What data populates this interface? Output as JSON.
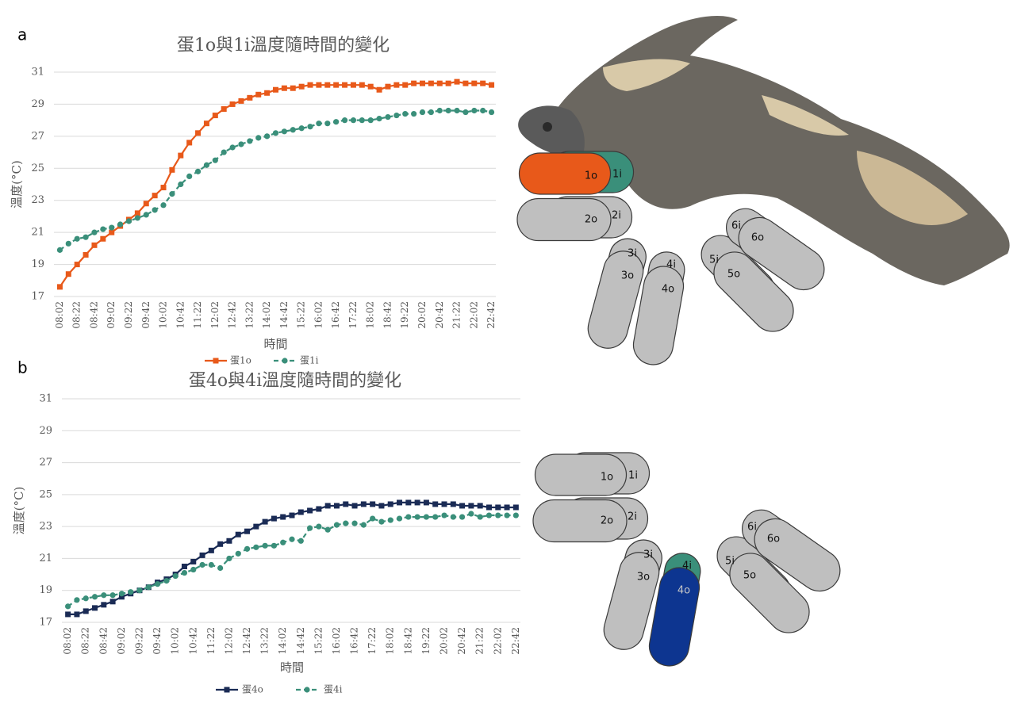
{
  "chart_data": [
    {
      "type": "line",
      "title": "蛋1o與1i溫度隨時間的變化",
      "y_label": "溫度(°C)",
      "x_label": "時間",
      "categories": [
        "08:02",
        null,
        "08:22",
        null,
        "08:42",
        null,
        "09:02",
        null,
        "09:22",
        null,
        "09:42",
        null,
        "10:02",
        null,
        "10:42",
        null,
        "11:22",
        null,
        "12:02",
        null,
        "12:42",
        null,
        "13:22",
        null,
        "14:02",
        null,
        "14:42",
        null,
        "15:22",
        null,
        "16:02",
        null,
        "16:42",
        null,
        "17:22",
        null,
        "18:02",
        null,
        "18:42",
        null,
        "19:22",
        null,
        "20:02",
        null,
        "20:42",
        null,
        "21:22",
        null,
        "22:02",
        null,
        "22:42"
      ],
      "ylim": [
        17,
        31
      ],
      "yticks": [
        17,
        19,
        21,
        23,
        25,
        27,
        29,
        31
      ],
      "grid": true,
      "series": [
        {
          "name": "蛋1o",
          "color": "#e8591a",
          "marker": "square",
          "dashed": false,
          "values": [
            17.6,
            18.4,
            19.0,
            19.6,
            20.2,
            20.6,
            21.0,
            21.4,
            21.8,
            22.2,
            22.8,
            23.3,
            23.8,
            24.9,
            25.8,
            26.6,
            27.2,
            27.8,
            28.3,
            28.7,
            29.0,
            29.2,
            29.4,
            29.6,
            29.7,
            29.9,
            30.0,
            30.0,
            30.1,
            30.2,
            30.2,
            30.2,
            30.2,
            30.2,
            30.2,
            30.2,
            30.1,
            29.9,
            30.1,
            30.2,
            30.2,
            30.3,
            30.3,
            30.3,
            30.3,
            30.3,
            30.4,
            30.3,
            30.3,
            30.3,
            30.2
          ]
        },
        {
          "name": "蛋1i",
          "color": "#3a8f7a",
          "marker": "circle",
          "dashed": true,
          "values": [
            19.9,
            20.3,
            20.6,
            20.7,
            21.0,
            21.2,
            21.3,
            21.5,
            21.7,
            21.9,
            22.1,
            22.4,
            22.7,
            23.4,
            24.0,
            24.5,
            24.8,
            25.2,
            25.5,
            26.0,
            26.3,
            26.5,
            26.7,
            26.9,
            27.0,
            27.2,
            27.3,
            27.4,
            27.5,
            27.6,
            27.8,
            27.8,
            27.9,
            28.0,
            28.0,
            28.0,
            28.0,
            28.1,
            28.2,
            28.3,
            28.4,
            28.4,
            28.5,
            28.5,
            28.6,
            28.6,
            28.6,
            28.5,
            28.6,
            28.6,
            28.5
          ]
        }
      ]
    },
    {
      "type": "line",
      "title": "蛋4o與4i溫度隨時間的變化",
      "y_label": "溫度(°C)",
      "x_label": "時間",
      "categories": [
        "08:02",
        null,
        "08:22",
        null,
        "08:42",
        null,
        "09:02",
        null,
        "09:22",
        null,
        "09:42",
        null,
        "10:02",
        null,
        "10:42",
        null,
        "11:22",
        null,
        "12:02",
        null,
        "12:42",
        null,
        "13:22",
        null,
        "14:02",
        null,
        "14:42",
        null,
        "15:22",
        null,
        "16:02",
        null,
        "16:42",
        null,
        "17:22",
        null,
        "18:02",
        null,
        "18:42",
        null,
        "19:22",
        null,
        "20:02",
        null,
        "20:42",
        null,
        "21:22",
        null,
        "22:02",
        null,
        "22:42"
      ],
      "ylim": [
        17,
        31
      ],
      "yticks": [
        17,
        19,
        21,
        23,
        25,
        27,
        29,
        31
      ],
      "grid": true,
      "series": [
        {
          "name": "蛋4o",
          "color": "#1a2b55",
          "marker": "square",
          "dashed": false,
          "values": [
            17.5,
            17.5,
            17.7,
            17.9,
            18.1,
            18.3,
            18.6,
            18.8,
            19.0,
            19.2,
            19.5,
            19.7,
            20.0,
            20.5,
            20.8,
            21.2,
            21.5,
            21.9,
            22.1,
            22.5,
            22.7,
            23.0,
            23.3,
            23.5,
            23.6,
            23.7,
            23.9,
            24.0,
            24.1,
            24.3,
            24.3,
            24.4,
            24.3,
            24.4,
            24.4,
            24.3,
            24.4,
            24.5,
            24.5,
            24.5,
            24.5,
            24.4,
            24.4,
            24.4,
            24.3,
            24.3,
            24.3,
            24.2,
            24.2,
            24.2,
            24.2
          ]
        },
        {
          "name": "蛋4i",
          "color": "#3a8f7a",
          "marker": "circle",
          "dashed": true,
          "values": [
            18.0,
            18.4,
            18.5,
            18.6,
            18.7,
            18.7,
            18.8,
            18.9,
            19.0,
            19.2,
            19.4,
            19.6,
            19.9,
            20.1,
            20.3,
            20.6,
            20.6,
            20.4,
            21.0,
            21.3,
            21.6,
            21.7,
            21.8,
            21.8,
            22.0,
            22.2,
            22.1,
            22.9,
            23.0,
            22.8,
            23.1,
            23.2,
            23.2,
            23.1,
            23.5,
            23.3,
            23.4,
            23.5,
            23.6,
            23.6,
            23.6,
            23.6,
            23.7,
            23.6,
            23.6,
            23.8,
            23.6,
            23.7,
            23.7,
            23.7,
            23.7
          ]
        }
      ]
    }
  ],
  "panels": [
    "a",
    "b"
  ],
  "diagrams": [
    {
      "labels": [
        "1o",
        "1i",
        "2o",
        "2i",
        "3i",
        "3o",
        "4i",
        "4o",
        "5i",
        "5o",
        "6i",
        "6o"
      ]
    },
    {
      "labels": [
        "1o",
        "1i",
        "2o",
        "2i",
        "3i",
        "3o",
        "4i",
        "4o",
        "5i",
        "5o",
        "6i",
        "6o"
      ]
    }
  ]
}
